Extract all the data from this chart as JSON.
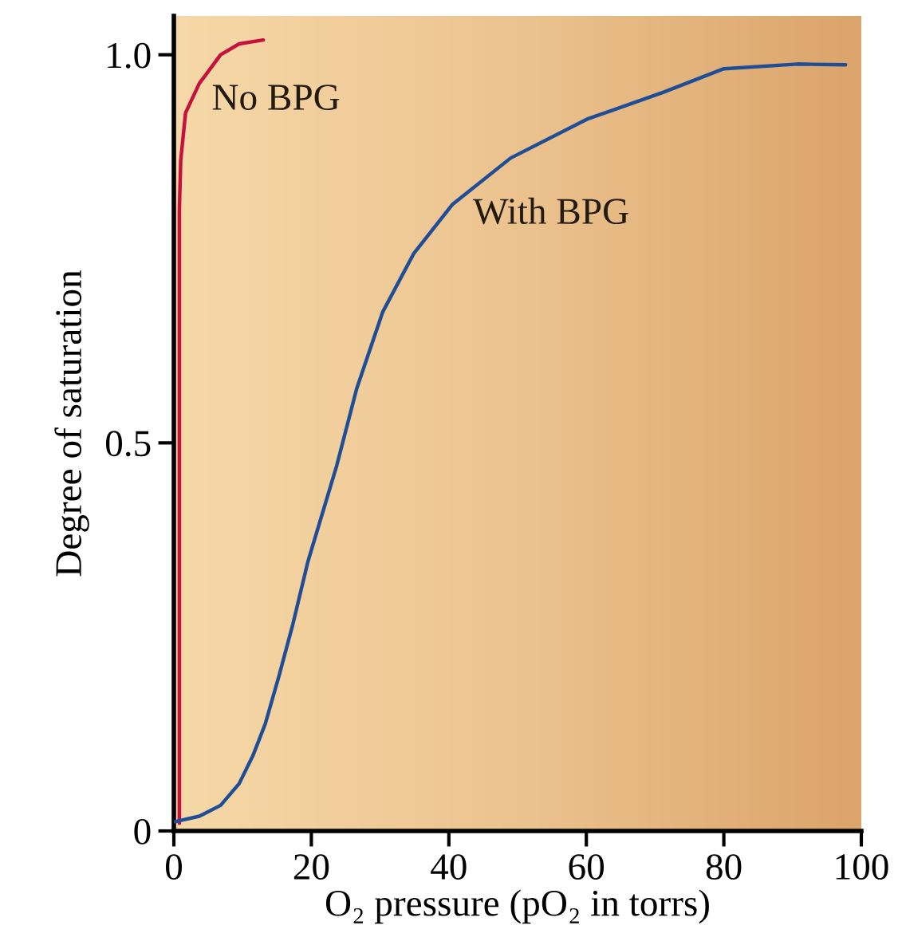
{
  "chart_data": {
    "type": "line",
    "xlabel": "O₂ pressure (pO₂ in torrs)",
    "ylabel": "Degree of saturation",
    "xlim": [
      0,
      100
    ],
    "xticks": [
      0,
      20,
      40,
      60,
      80,
      100
    ],
    "ylim": [
      0,
      1.05
    ],
    "yticks": [
      0,
      0.5,
      {
        "value": 1,
        "label": "1.0"
      }
    ],
    "grid": false,
    "legend": false,
    "marker": "none",
    "line_style": "solid",
    "series": [
      {
        "name": "No BPG",
        "color": "#c8103e",
        "x": [
          0.8,
          0.8,
          1.0,
          1.7,
          3.7,
          6.8,
          9.5,
          13.0
        ],
        "values": [
          0.01,
          0.8,
          0.864,
          0.925,
          0.963,
          1.0,
          1.014,
          1.019
        ]
      },
      {
        "name": "With BPG",
        "color": "#1f4e96",
        "x": [
          0.2,
          3.7,
          6.8,
          9.5,
          11.5,
          13.3,
          15.3,
          17.3,
          19.5,
          23.7,
          26.6,
          30.4,
          34.9,
          40.5,
          49.0,
          60.1,
          71.3,
          80.0,
          90.7,
          97.7
        ],
        "values": [
          0.012,
          0.019,
          0.033,
          0.061,
          0.097,
          0.138,
          0.2,
          0.266,
          0.347,
          0.471,
          0.57,
          0.669,
          0.744,
          0.807,
          0.867,
          0.917,
          0.952,
          0.982,
          0.988,
          0.987
        ]
      }
    ]
  }
}
